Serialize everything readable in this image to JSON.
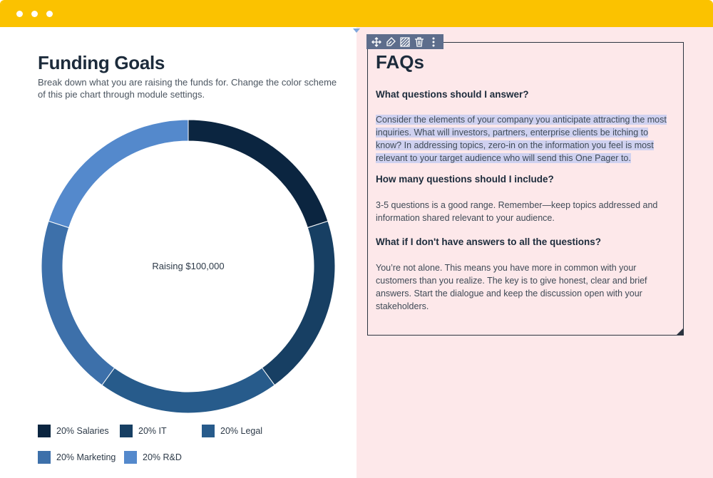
{
  "window": {
    "colors": {
      "titlebar": "#fbc200",
      "right_pane": "#fde8ea",
      "selection": "#cfd1f0"
    }
  },
  "left": {
    "title": "Funding Goals",
    "subtitle": "Break down what you are raising the funds for. Change the color scheme of this pie chart through module settings."
  },
  "chart_data": {
    "type": "pie",
    "center_label": "Raising $100,000",
    "categories": [
      "Salaries",
      "IT",
      "Legal",
      "Marketing",
      "R&D"
    ],
    "values": [
      20,
      20,
      20,
      20,
      20
    ],
    "colors": [
      "#0b2540",
      "#173f63",
      "#275b8b",
      "#3d70aa",
      "#5489cc"
    ],
    "legend": [
      {
        "percent": "20%",
        "label": "Salaries"
      },
      {
        "percent": "20%",
        "label": "IT"
      },
      {
        "percent": "20%",
        "label": "Legal"
      },
      {
        "percent": "20%",
        "label": "Marketing"
      },
      {
        "percent": "20%",
        "label": "R&D"
      }
    ]
  },
  "toolbar": {
    "icons": [
      "move-icon",
      "paint-brush-icon",
      "pattern-icon",
      "trash-icon",
      "more-vertical-icon"
    ]
  },
  "faq": {
    "title": "FAQs",
    "items": [
      {
        "question": "What questions should I answer?",
        "answer": "Consider the elements of your company you anticipate attracting the most inquiries. What will investors, partners, enterprise clients be itching to know? In addressing topics, zero-in on the information you feel is most relevant to your target audience who will send this One Pager to."
      },
      {
        "question": "How many questions should I include?",
        "answer": "3-5 questions is a good range. Remember—keep topics addressed and information shared relevant to your audience."
      },
      {
        "question": "What if I don't have answers to all the questions?",
        "answer": "You’re not alone. This means you have more in common with your customers than you realize. The key is to give honest, clear and brief answers. Start the dialogue and keep the discussion open with your stakeholders."
      }
    ]
  }
}
